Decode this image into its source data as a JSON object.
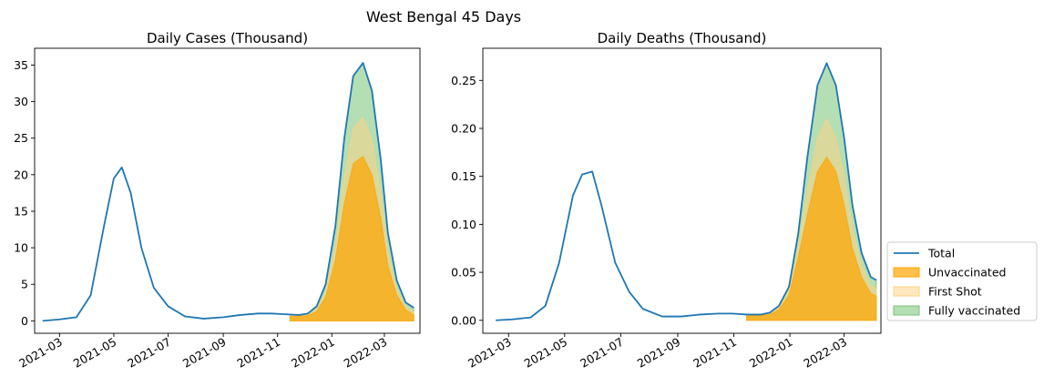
{
  "suptitle": "West Bengal 45 Days",
  "colors": {
    "total": "#1f77b4",
    "unvaccinated": "#ffa500",
    "first_shot": "#ffd27f",
    "fully_vaccinated": "#77c277"
  },
  "legend": {
    "placement": "outside-right-bottom",
    "entries": [
      "Total",
      "Unvaccinated",
      "First Shot",
      "Fully vaccinated"
    ]
  },
  "chart_data": [
    {
      "type": "area",
      "title": "Daily Cases (Thousand)",
      "xlabel": "",
      "ylabel": "",
      "x_ticks": [
        "2021-03",
        "2021-05",
        "2021-07",
        "2021-09",
        "2021-11",
        "2022-01",
        "2022-03"
      ],
      "y_ticks": [
        "0",
        "5",
        "10",
        "15",
        "20",
        "25",
        "30",
        "35"
      ],
      "xlim": [
        "2021-02-01",
        "2022-04-10"
      ],
      "ylim": [
        -1.7,
        37.3
      ],
      "grid": false,
      "series": [
        {
          "name": "Total",
          "x": [
            "2021-02-10",
            "2021-03-01",
            "2021-03-20",
            "2021-04-05",
            "2021-04-20",
            "2021-05-01",
            "2021-05-10",
            "2021-05-20",
            "2021-06-01",
            "2021-06-15",
            "2021-07-01",
            "2021-07-20",
            "2021-08-10",
            "2021-09-01",
            "2021-09-20",
            "2021-10-10",
            "2021-10-25",
            "2021-11-10",
            "2021-11-25",
            "2021-12-05",
            "2021-12-15",
            "2021-12-25",
            "2022-01-05",
            "2022-01-15",
            "2022-01-25",
            "2022-02-05",
            "2022-02-15",
            "2022-02-25",
            "2022-03-05",
            "2022-03-15",
            "2022-03-25",
            "2022-04-03"
          ],
          "values": [
            0.0,
            0.2,
            0.5,
            3.5,
            13.0,
            19.5,
            21.0,
            17.5,
            10.0,
            4.5,
            2.0,
            0.6,
            0.3,
            0.5,
            0.8,
            1.0,
            1.0,
            0.9,
            0.8,
            1.0,
            2.0,
            5.0,
            13.0,
            25.0,
            33.5,
            35.3,
            31.5,
            22.0,
            12.0,
            5.5,
            2.5,
            1.8
          ]
        },
        {
          "name": "Unvaccinated",
          "x": [
            "2021-11-15",
            "2021-11-25",
            "2021-12-05",
            "2021-12-15",
            "2021-12-25",
            "2022-01-05",
            "2022-01-15",
            "2022-01-25",
            "2022-02-05",
            "2022-02-15",
            "2022-02-25",
            "2022-03-05",
            "2022-03-15",
            "2022-03-25",
            "2022-04-03"
          ],
          "values": [
            0.6,
            0.6,
            0.7,
            1.3,
            3.2,
            8.3,
            16.0,
            21.5,
            22.5,
            20.0,
            14.0,
            7.5,
            3.5,
            1.5,
            0.8
          ]
        },
        {
          "name": "First Shot",
          "x": [
            "2021-11-15",
            "2021-11-25",
            "2021-12-05",
            "2021-12-15",
            "2021-12-25",
            "2022-01-05",
            "2022-01-15",
            "2022-01-25",
            "2022-02-05",
            "2022-02-15",
            "2022-02-25",
            "2022-03-05",
            "2022-03-15",
            "2022-03-25",
            "2022-04-03"
          ],
          "values": [
            0.7,
            0.7,
            0.8,
            1.6,
            3.9,
            10.2,
            19.6,
            26.3,
            27.8,
            24.8,
            17.3,
            9.4,
            4.3,
            1.9,
            1.2
          ]
        },
        {
          "name": "Fully vaccinated",
          "x": [
            "2021-11-15",
            "2021-11-25",
            "2021-12-05",
            "2021-12-15",
            "2021-12-25",
            "2022-01-05",
            "2022-01-15",
            "2022-01-25",
            "2022-02-05",
            "2022-02-15",
            "2022-02-25",
            "2022-03-05",
            "2022-03-15",
            "2022-03-25",
            "2022-04-03"
          ],
          "values": [
            0.8,
            0.8,
            1.0,
            2.0,
            5.0,
            13.0,
            25.0,
            33.5,
            35.3,
            31.5,
            22.0,
            12.0,
            5.5,
            2.5,
            1.8
          ]
        }
      ]
    },
    {
      "type": "area",
      "title": "Daily Deaths (Thousand)",
      "xlabel": "",
      "ylabel": "",
      "x_ticks": [
        "2021-03",
        "2021-05",
        "2021-07",
        "2021-09",
        "2021-11",
        "2022-01",
        "2022-03"
      ],
      "y_ticks": [
        "0.00",
        "0.05",
        "0.10",
        "0.15",
        "0.20",
        "0.25"
      ],
      "xlim": [
        "2021-02-01",
        "2022-04-10"
      ],
      "ylim": [
        -0.0135,
        0.2835
      ],
      "grid": false,
      "series": [
        {
          "name": "Total",
          "x": [
            "2021-02-15",
            "2021-03-05",
            "2021-03-25",
            "2021-04-10",
            "2021-04-25",
            "2021-05-10",
            "2021-05-20",
            "2021-05-31",
            "2021-06-10",
            "2021-06-25",
            "2021-07-10",
            "2021-07-25",
            "2021-08-15",
            "2021-09-05",
            "2021-09-25",
            "2021-10-15",
            "2021-10-30",
            "2021-11-15",
            "2021-11-30",
            "2021-12-10",
            "2021-12-20",
            "2021-12-31",
            "2022-01-10",
            "2022-01-20",
            "2022-01-31",
            "2022-02-10",
            "2022-02-20",
            "2022-03-01",
            "2022-03-10",
            "2022-03-20",
            "2022-03-30",
            "2022-04-05"
          ],
          "values": [
            0.0,
            0.001,
            0.003,
            0.015,
            0.06,
            0.13,
            0.152,
            0.155,
            0.12,
            0.06,
            0.03,
            0.012,
            0.004,
            0.004,
            0.006,
            0.007,
            0.007,
            0.006,
            0.006,
            0.008,
            0.015,
            0.035,
            0.09,
            0.17,
            0.245,
            0.268,
            0.245,
            0.19,
            0.12,
            0.07,
            0.045,
            0.042
          ]
        },
        {
          "name": "Unvaccinated",
          "x": [
            "2021-11-15",
            "2021-11-30",
            "2021-12-10",
            "2021-12-20",
            "2021-12-31",
            "2022-01-10",
            "2022-01-20",
            "2022-01-31",
            "2022-02-10",
            "2022-02-20",
            "2022-03-01",
            "2022-03-10",
            "2022-03-20",
            "2022-03-30",
            "2022-04-05"
          ],
          "values": [
            0.005,
            0.005,
            0.006,
            0.011,
            0.026,
            0.065,
            0.11,
            0.155,
            0.17,
            0.155,
            0.12,
            0.075,
            0.045,
            0.028,
            0.025
          ]
        },
        {
          "name": "First Shot",
          "x": [
            "2021-11-15",
            "2021-11-30",
            "2021-12-10",
            "2021-12-20",
            "2021-12-31",
            "2022-01-10",
            "2022-01-20",
            "2022-01-31",
            "2022-02-10",
            "2022-02-20",
            "2022-03-01",
            "2022-03-10",
            "2022-03-20",
            "2022-03-30",
            "2022-04-05"
          ],
          "values": [
            0.0055,
            0.0055,
            0.007,
            0.013,
            0.03,
            0.075,
            0.135,
            0.19,
            0.21,
            0.19,
            0.15,
            0.095,
            0.056,
            0.036,
            0.033
          ]
        },
        {
          "name": "Fully vaccinated",
          "x": [
            "2021-11-15",
            "2021-11-30",
            "2021-12-10",
            "2021-12-20",
            "2021-12-31",
            "2022-01-10",
            "2022-01-20",
            "2022-01-31",
            "2022-02-10",
            "2022-02-20",
            "2022-03-01",
            "2022-03-10",
            "2022-03-20",
            "2022-03-30",
            "2022-04-05"
          ],
          "values": [
            0.006,
            0.006,
            0.008,
            0.015,
            0.035,
            0.09,
            0.17,
            0.245,
            0.268,
            0.245,
            0.19,
            0.12,
            0.07,
            0.045,
            0.042
          ]
        }
      ]
    }
  ]
}
